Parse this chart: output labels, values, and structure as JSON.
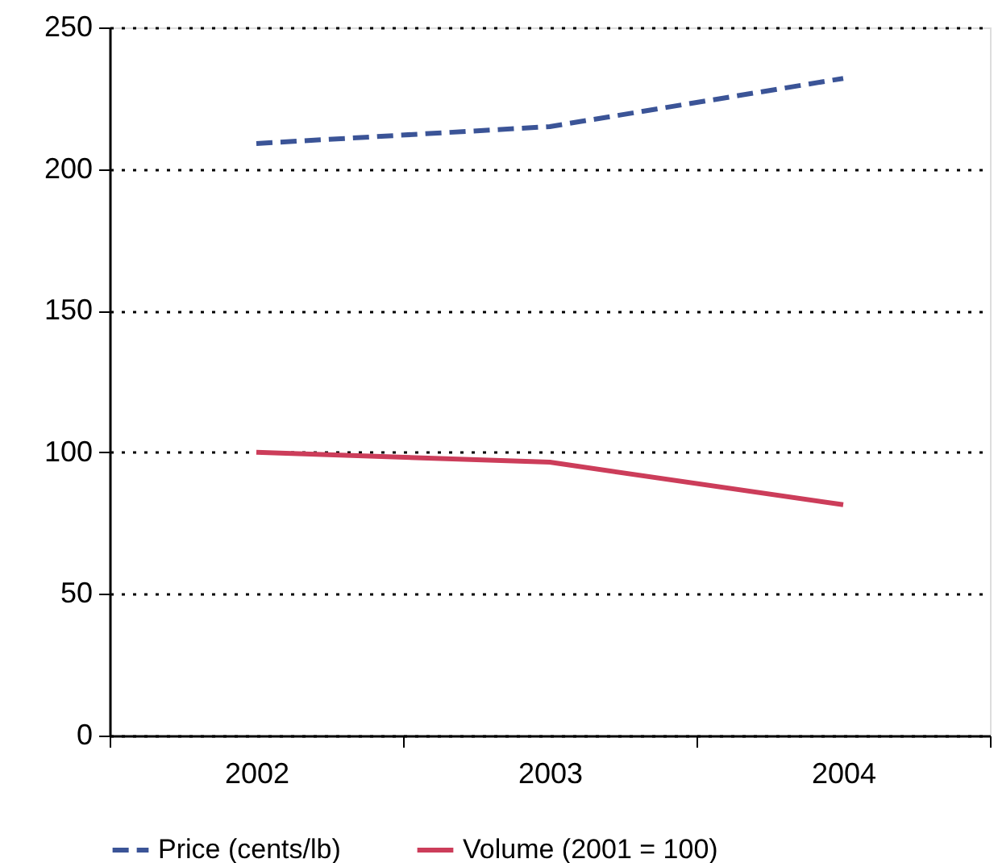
{
  "chart_data": {
    "type": "line",
    "categories": [
      "2002",
      "2003",
      "2004"
    ],
    "series": [
      {
        "name": "Price (cents/lb)",
        "color": "#3b5497",
        "line_style": "dashed",
        "values": [
          209,
          215,
          232
        ]
      },
      {
        "name": "Volume (2001 = 100)",
        "color": "#cc3d5a",
        "line_style": "solid",
        "values": [
          100,
          96.5,
          81.5
        ]
      }
    ],
    "ylim": [
      0,
      250
    ],
    "yticks": [
      0,
      50,
      100,
      150,
      200,
      250
    ],
    "grid": "y",
    "legend": "bottom"
  }
}
